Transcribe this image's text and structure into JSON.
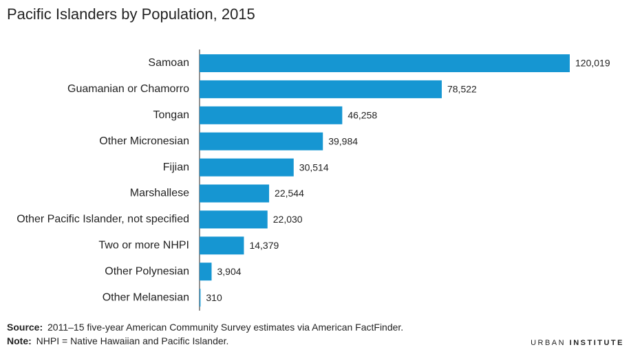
{
  "chart_data": {
    "type": "bar",
    "orientation": "horizontal",
    "title": "Pacific Islanders by Population, 2015",
    "categories": [
      "Samoan",
      "Guamanian or Chamorro",
      "Tongan",
      "Other Micronesian",
      "Fijian",
      "Marshallese",
      "Other Pacific Islander, not specified",
      "Two or more NHPI",
      "Other Polynesian",
      "Other Melanesian"
    ],
    "values": [
      120019,
      78522,
      46258,
      39984,
      30514,
      22544,
      22030,
      14379,
      3904,
      310
    ],
    "value_labels": [
      "120,019",
      "78,522",
      "46,258",
      "39,984",
      "30,514",
      "22,544",
      "22,030",
      "14,379",
      "3,904",
      "310"
    ],
    "color": "#1696d2"
  },
  "footer": {
    "source_label": "Source:",
    "source": "2011–15 five-year American Community Survey estimates via American FactFinder.",
    "note_label": "Note:",
    "note": "NHPI = Native Hawaiian and Pacific Islander.",
    "brand": [
      "URBAN",
      "INSTITUTE"
    ]
  }
}
